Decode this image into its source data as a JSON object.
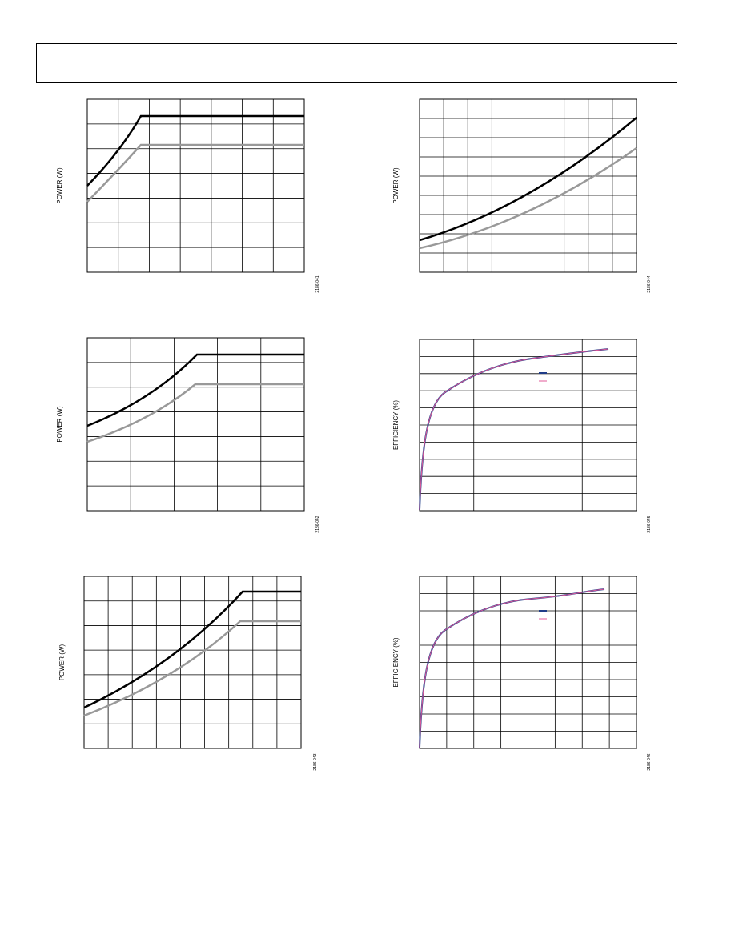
{
  "figures": [
    {
      "y_label": "POWER (W)",
      "code": "2186-041"
    },
    {
      "y_label": "POWER (W)",
      "code": "2186-044"
    },
    {
      "y_label": "POWER (W)",
      "code": "2186-042"
    },
    {
      "y_label": "EFFICIENCY (%)",
      "code": "2186-045"
    },
    {
      "y_label": "POWER (W)",
      "code": "2186-043"
    },
    {
      "y_label": "EFFICIENCY (%)",
      "code": "2186-046"
    }
  ]
}
